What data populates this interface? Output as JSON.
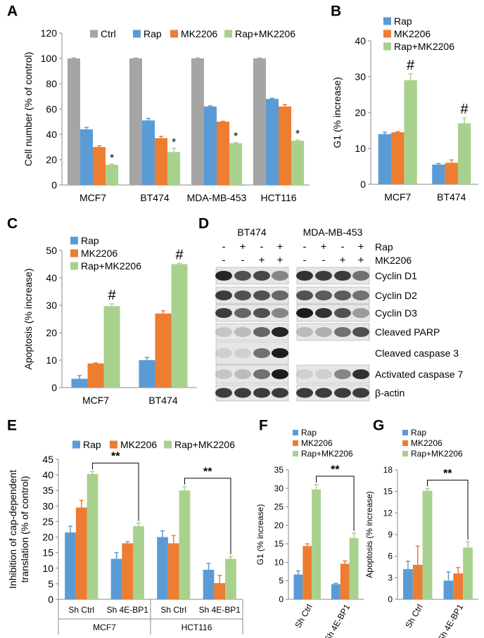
{
  "chart_data": [
    {
      "type": "bar",
      "label": "A",
      "ylabel": "Cell number  (% of control)",
      "legend": "top",
      "categories": [
        "MCF7",
        "BT474",
        "MDA-MB-453",
        "HCT116"
      ],
      "series": [
        {
          "name": "Ctrl",
          "color": "#a5a5a5",
          "values": [
            100,
            100,
            100,
            100
          ],
          "errors": [
            0.3,
            0.3,
            0.3,
            0.3
          ]
        },
        {
          "name": "Rap",
          "color": "#5b9bd5",
          "values": [
            44,
            51,
            62,
            68
          ],
          "errors": [
            1.5,
            1.5,
            0.5,
            0.5
          ]
        },
        {
          "name": "MK2206",
          "color": "#ed7d31",
          "values": [
            30,
            37,
            50,
            62
          ],
          "errors": [
            1,
            1.5,
            0.3,
            1.5
          ]
        },
        {
          "name": "Rap+MK2206",
          "color": "#a9d18e",
          "values": [
            16,
            26,
            33,
            35
          ],
          "errors": [
            0.5,
            3,
            0.5,
            0.5
          ],
          "marks": [
            "*",
            "*",
            "*",
            "*"
          ]
        }
      ],
      "ylim": [
        0,
        120
      ],
      "yticks": [
        0,
        20,
        40,
        60,
        80,
        100,
        120
      ]
    },
    {
      "type": "bar",
      "label": "B",
      "ylabel": "G1 (% increase)",
      "legend": "top-left",
      "categories": [
        "MCF7",
        "BT474"
      ],
      "series": [
        {
          "name": "Rap",
          "color": "#5b9bd5",
          "values": [
            14,
            5.5
          ],
          "errors": [
            0.5,
            0.3
          ]
        },
        {
          "name": "MK2206",
          "color": "#ed7d31",
          "values": [
            14.5,
            6
          ],
          "errors": [
            0.2,
            0.8
          ]
        },
        {
          "name": "Rap+MK2206",
          "color": "#a9d18e",
          "values": [
            29,
            17
          ],
          "errors": [
            1.8,
            1.5
          ],
          "marks": [
            "#",
            "#"
          ]
        }
      ],
      "ylim": [
        0,
        40
      ],
      "yticks": [
        0,
        10,
        20,
        30,
        40
      ]
    },
    {
      "type": "bar",
      "label": "C",
      "ylabel": "Apoptosis (% increase)",
      "legend": "top-left",
      "categories": [
        "MCF7",
        "BT474"
      ],
      "series": [
        {
          "name": "Rap",
          "color": "#5b9bd5",
          "values": [
            3.2,
            10
          ],
          "errors": [
            1.2,
            1
          ]
        },
        {
          "name": "MK2206",
          "color": "#ed7d31",
          "values": [
            8.8,
            27
          ],
          "errors": [
            0.2,
            1
          ]
        },
        {
          "name": "Rap+MK2206",
          "color": "#a9d18e",
          "values": [
            29.7,
            45
          ],
          "errors": [
            0.8,
            0.3
          ],
          "marks": [
            "#",
            "#"
          ]
        }
      ],
      "ylim": [
        0,
        50
      ],
      "yticks": [
        0,
        10,
        20,
        30,
        40,
        50
      ]
    },
    {
      "type": "bar",
      "label": "E",
      "ylabel": [
        "Inhibition of cap-dependent",
        "translation  (% of control)"
      ],
      "legend": "top",
      "categories": [
        "Sh Ctrl",
        "Sh 4E-BP1",
        "Sh Ctrl",
        "Sh 4E-BP1"
      ],
      "groups": [
        "MCF7",
        "HCT116"
      ],
      "series": [
        {
          "name": "Rap",
          "color": "#5b9bd5",
          "values": [
            21.5,
            13,
            20,
            9.5
          ],
          "errors": [
            2,
            2,
            2,
            2
          ]
        },
        {
          "name": "MK2206",
          "color": "#ed7d31",
          "values": [
            29.5,
            18,
            18,
            5.2
          ],
          "errors": [
            2.3,
            0.5,
            2.5,
            2.5
          ]
        },
        {
          "name": "Rap+MK2206",
          "color": "#a9d18e",
          "values": [
            40.3,
            23.5,
            35,
            13
          ],
          "errors": [
            0.8,
            1,
            1.2,
            0.8
          ]
        }
      ],
      "brackets": [
        "**",
        "**"
      ],
      "ylim": [
        0,
        45
      ],
      "yticks": [
        0,
        5,
        10,
        15,
        20,
        25,
        30,
        35,
        40,
        45
      ]
    },
    {
      "type": "bar",
      "label": "F",
      "ylabel": "G1 (% increase)",
      "legend": "top-left",
      "categories": [
        "Sh Ctrl",
        "Sh 4E-BP1"
      ],
      "series": [
        {
          "name": "Rap",
          "color": "#5b9bd5",
          "values": [
            6.7,
            4.1
          ],
          "errors": [
            1,
            0.2
          ]
        },
        {
          "name": "MK2206",
          "color": "#ed7d31",
          "values": [
            14.4,
            9.6
          ],
          "errors": [
            0.6,
            0.8
          ]
        },
        {
          "name": "Rap+MK2206",
          "color": "#a9d18e",
          "values": [
            29.7,
            16.6
          ],
          "errors": [
            1.3,
            1.3
          ]
        }
      ],
      "brackets": [
        "**"
      ],
      "ylim": [
        0,
        35
      ],
      "yticks": [
        0,
        5,
        10,
        15,
        20,
        25,
        30,
        35
      ]
    },
    {
      "type": "bar",
      "label": "G",
      "ylabel": "Apoptosis (% increase)",
      "legend": "top-left",
      "categories": [
        "Sh Ctrl",
        "Sh 4E-BP1"
      ],
      "series": [
        {
          "name": "Rap",
          "color": "#5b9bd5",
          "values": [
            4.2,
            2.6
          ],
          "errors": [
            1.1,
            1.2
          ]
        },
        {
          "name": "MK2206",
          "color": "#ed7d31",
          "values": [
            4.8,
            3.6
          ],
          "errors": [
            2.6,
            0.8
          ]
        },
        {
          "name": "Rap+MK2206",
          "color": "#a9d18e",
          "values": [
            15.1,
            7.2
          ],
          "errors": [
            0.3,
            0.8
          ]
        }
      ],
      "brackets": [
        "**"
      ],
      "ylim": [
        0,
        18
      ],
      "yticks": [
        0,
        3,
        6,
        9,
        12,
        15,
        18
      ]
    }
  ],
  "blot": {
    "label": "D",
    "cell_lines": [
      "BT474",
      "MDA-MB-453"
    ],
    "treatments": [
      {
        "name": "Rap",
        "signs": [
          "-",
          "+",
          "-",
          "+"
        ]
      },
      {
        "name": "MK2206",
        "signs": [
          "-",
          "-",
          "+",
          "+"
        ]
      }
    ],
    "proteins": [
      "Cyclin D1",
      "Cyclin D2",
      "Cyclin D3",
      "Cleaved PARP",
      "Cleaved caspase 3",
      "Activated caspase 7",
      "β-actin"
    ]
  }
}
